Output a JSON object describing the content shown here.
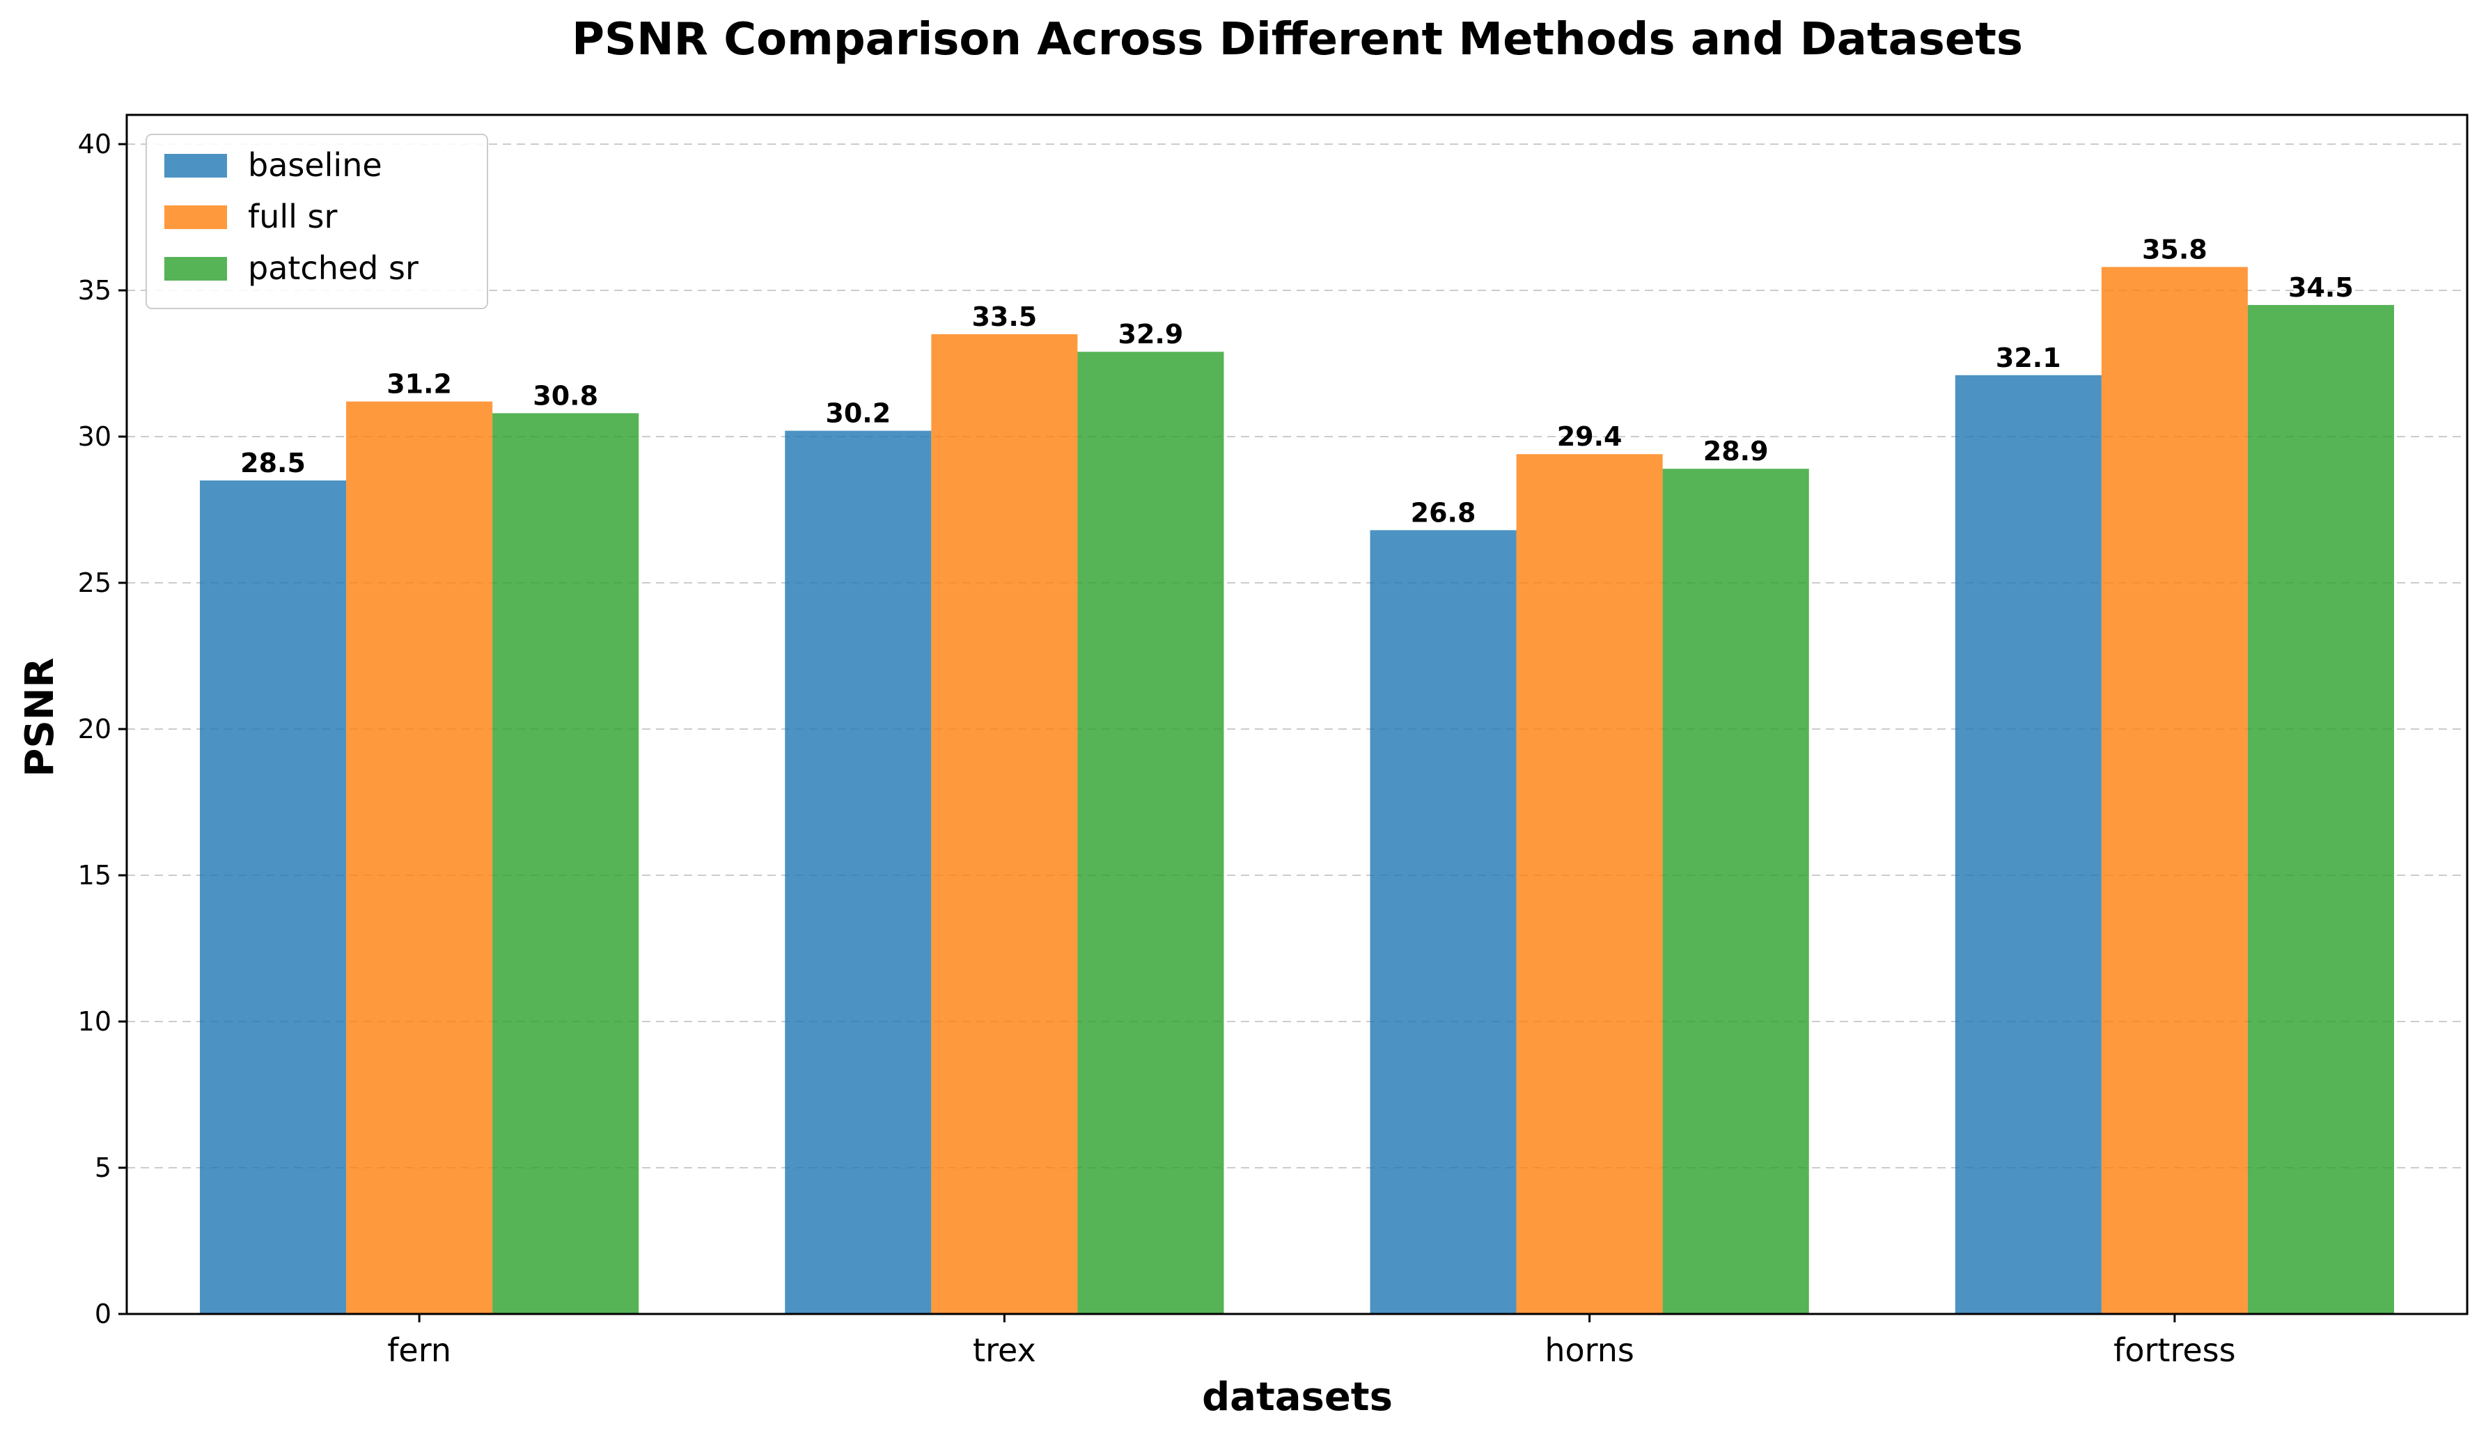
{
  "chart_data": {
    "type": "bar",
    "title": "PSNR Comparison Across Different Methods and Datasets",
    "xlabel": "datasets",
    "ylabel": "PSNR",
    "categories": [
      "fern",
      "trex",
      "horns",
      "fortress"
    ],
    "series": [
      {
        "name": "baseline",
        "values": [
          28.5,
          30.2,
          26.8,
          32.1
        ],
        "color": "#1f77b4"
      },
      {
        "name": "full sr",
        "values": [
          31.2,
          33.5,
          29.4,
          35.8
        ],
        "color": "#ff7f0e"
      },
      {
        "name": "patched sr",
        "values": [
          30.8,
          32.9,
          28.9,
          34.5
        ],
        "color": "#2ca02c"
      }
    ],
    "ylim": [
      0,
      41
    ],
    "yticks": [
      0,
      5,
      10,
      15,
      20,
      25,
      30,
      35,
      40
    ],
    "grid": "y-dashed",
    "legend": "top-left",
    "data_labels": true
  }
}
